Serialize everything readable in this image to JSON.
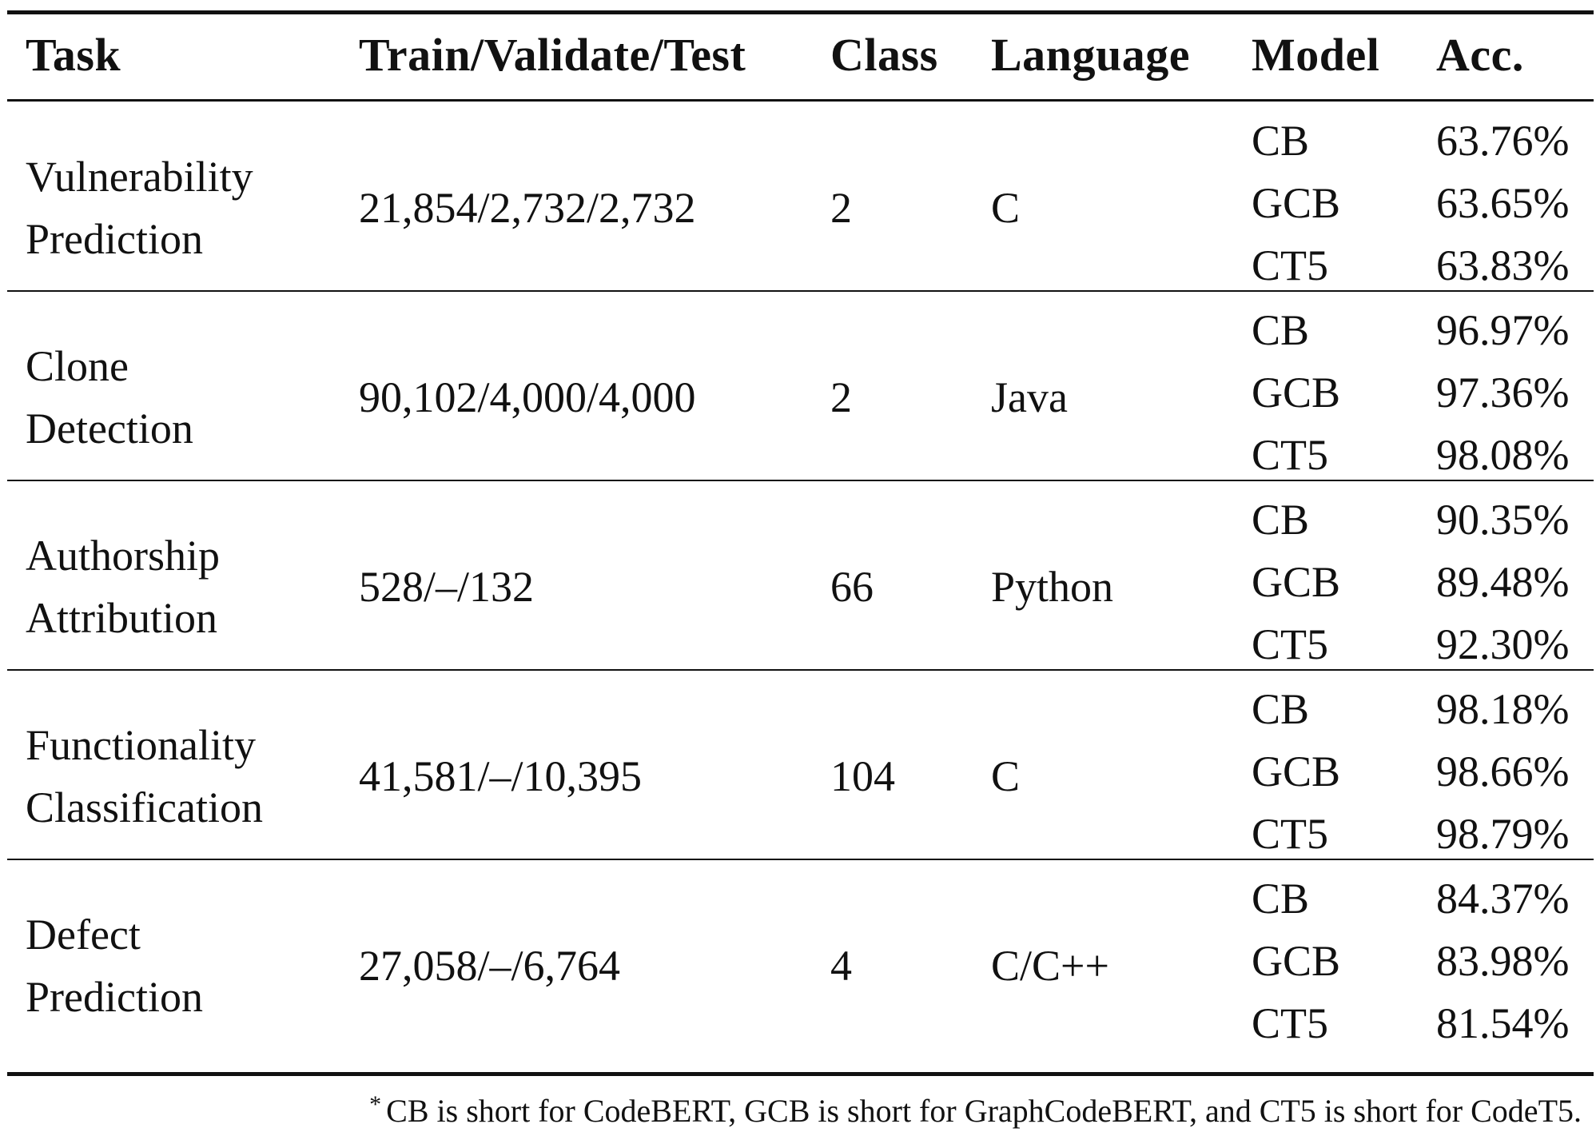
{
  "table": {
    "headers": {
      "task": "Task",
      "split": "Train/Validate/Test",
      "class": "Class",
      "language": "Language",
      "model": "Model",
      "acc": "Acc."
    },
    "rows": [
      {
        "task_line1": "Vulnerability",
        "task_line2": "Prediction",
        "split": "21,854/2,732/2,732",
        "class": "2",
        "language": "C",
        "models": [
          {
            "name": "CB",
            "acc": "63.76%"
          },
          {
            "name": "GCB",
            "acc": "63.65%"
          },
          {
            "name": "CT5",
            "acc": "63.83%"
          }
        ]
      },
      {
        "task_line1": "Clone",
        "task_line2": "Detection",
        "split": "90,102/4,000/4,000",
        "class": "2",
        "language": "Java",
        "models": [
          {
            "name": "CB",
            "acc": "96.97%"
          },
          {
            "name": "GCB",
            "acc": "97.36%"
          },
          {
            "name": "CT5",
            "acc": "98.08%"
          }
        ]
      },
      {
        "task_line1": "Authorship",
        "task_line2": "Attribution",
        "split": "528/–/132",
        "class": "66",
        "language": "Python",
        "models": [
          {
            "name": "CB",
            "acc": "90.35%"
          },
          {
            "name": "GCB",
            "acc": "89.48%"
          },
          {
            "name": "CT5",
            "acc": "92.30%"
          }
        ]
      },
      {
        "task_line1": "Functionality",
        "task_line2": "Classification",
        "split": "41,581/–/10,395",
        "class": "104",
        "language": "C",
        "models": [
          {
            "name": "CB",
            "acc": "98.18%"
          },
          {
            "name": "GCB",
            "acc": "98.66%"
          },
          {
            "name": "CT5",
            "acc": "98.79%"
          }
        ]
      },
      {
        "task_line1": "Defect",
        "task_line2": "Prediction",
        "split": "27,058/–/6,764",
        "class": "4",
        "language": "C/C++",
        "models": [
          {
            "name": "CB",
            "acc": "84.37%"
          },
          {
            "name": "GCB",
            "acc": "83.98%"
          },
          {
            "name": "CT5",
            "acc": "81.54%"
          }
        ]
      }
    ],
    "footnote_marker": "*",
    "footnote": "CB is short for CodeBERT, GCB is short for GraphCodeBERT, and CT5 is short for CodeT5."
  }
}
